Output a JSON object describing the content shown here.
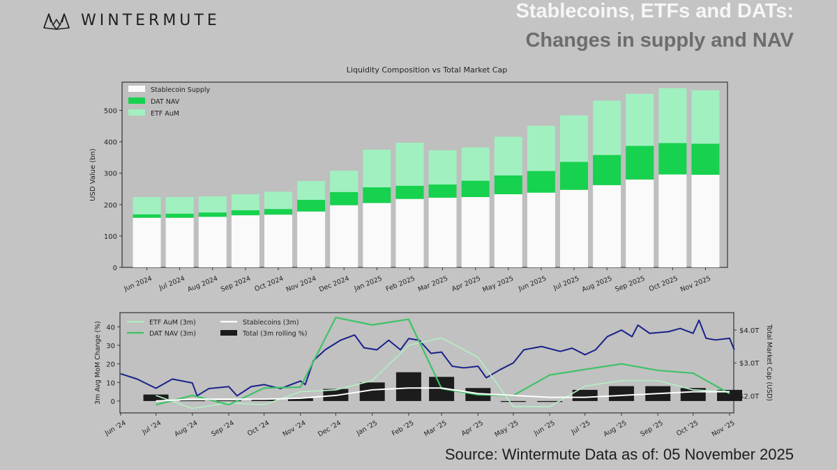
{
  "header": {
    "brand": "WINTERMUTE",
    "title_line1": "Stablecoins, ETFs and DATs:",
    "title_line2": "Changes in supply and NAV"
  },
  "footer": {
    "source": "Source: Wintermute  Data as of: 05 November 2025"
  },
  "colors": {
    "stablecoin": "#fafafa",
    "dat": "#16d24e",
    "etf": "#a1f0c0",
    "market_cap": "#1a1f8a",
    "dat_line": "#3ec266",
    "etf_line": "#b4ecc4",
    "stable_line": "#ffffff",
    "total_bar": "#1b1c1b",
    "background": "#c3c4c3"
  },
  "chart_data": [
    {
      "type": "bar",
      "stacked": true,
      "title": "Liquidity Composition vs Total Market Cap",
      "xlabel": "",
      "ylabel": "USD Value (bn)",
      "ylim": [
        0,
        590
      ],
      "yticks": [
        0,
        100,
        200,
        300,
        400,
        500
      ],
      "legend_placement": "top-left",
      "categories": [
        "Jun 2024",
        "Jul 2024",
        "Aug 2024",
        "Sep 2024",
        "Oct 2024",
        "Nov 2024",
        "Dec 2024",
        "Jan 2025",
        "Feb 2025",
        "Mar 2025",
        "Apr 2025",
        "May 2025",
        "Jun 2025",
        "Jul 2025",
        "Aug 2025",
        "Sep 2025",
        "Oct 2025",
        "Nov 2025"
      ],
      "series": [
        {
          "name": "Stablecoin Supply",
          "values": [
            158,
            158,
            161,
            166,
            168,
            178,
            198,
            205,
            218,
            222,
            224,
            233,
            238,
            247,
            262,
            280,
            296,
            295
          ]
        },
        {
          "name": "DAT NAV",
          "values": [
            11,
            13,
            14,
            16,
            18,
            37,
            42,
            50,
            42,
            42,
            52,
            60,
            69,
            89,
            96,
            107,
            100,
            99
          ]
        },
        {
          "name": "ETF AuM",
          "values": [
            55,
            53,
            51,
            51,
            55,
            60,
            68,
            120,
            137,
            109,
            106,
            123,
            144,
            148,
            173,
            166,
            175,
            170
          ]
        }
      ]
    },
    {
      "type": "line",
      "xlabel": "",
      "ylabel": "3m Avg MoM Change (%)",
      "ylabel_right": "Total Market Cap (USD)",
      "ylim": [
        -6.4,
        47.6
      ],
      "ylim_right": [
        1.48,
        4.53
      ],
      "yticks": [
        0,
        10,
        20,
        30,
        40
      ],
      "yticks_right": [
        "$2.0T",
        "$3.0T",
        "$4.0T"
      ],
      "yticks_right_values": [
        2.0,
        3.0,
        4.0
      ],
      "xticks": [
        "Jun '24",
        "Jul '24",
        "Aug '24",
        "Sep '24",
        "Oct '24",
        "Nov '24",
        "Dec '24",
        "Jan '25",
        "Feb '25",
        "Mar '25",
        "Apr '25",
        "May '25",
        "Jun '25",
        "Jul '25",
        "Aug '25",
        "Sep '25",
        "Oct '25",
        "Nov '25"
      ],
      "legend_placement": "top-left",
      "months": [
        "2024-07-01",
        "2024-08-01",
        "2024-09-01",
        "2024-10-01",
        "2024-11-01",
        "2024-12-01",
        "2025-01-01",
        "2025-02-01",
        "2025-03-01",
        "2025-04-01",
        "2025-05-01",
        "2025-06-01",
        "2025-07-01",
        "2025-08-01",
        "2025-09-01",
        "2025-10-01",
        "2025-11-01"
      ],
      "series": [
        {
          "name": "ETF AuM (3m)",
          "axis": "left",
          "values": [
            3,
            -4,
            -1,
            -2,
            5,
            6,
            11,
            30,
            34,
            23.5,
            -3,
            -3,
            8,
            11,
            11,
            6,
            5
          ]
        },
        {
          "name": "DAT NAV (3m)",
          "axis": "left",
          "values": [
            -2,
            3,
            -2,
            7,
            7.5,
            45,
            41,
            44,
            6.7,
            3.4,
            3,
            14,
            17,
            20,
            16.5,
            15,
            4
          ]
        },
        {
          "name": "Stablecoins (3m)",
          "axis": "left",
          "values": [
            0,
            1,
            1,
            1,
            1.5,
            3,
            6,
            7,
            7,
            4,
            3,
            2,
            2,
            3,
            4,
            5,
            5
          ]
        },
        {
          "name": "Total (3m rolling %)",
          "axis": "left",
          "type": "bar",
          "values": [
            3.5,
            0.3,
            0.3,
            1,
            1.5,
            6.5,
            10,
            15.5,
            13,
            7,
            -0.5,
            -0.5,
            6,
            8,
            8,
            7,
            6
          ]
        }
      ],
      "market_cap": {
        "axis": "right",
        "unit": "T USD",
        "x": [
          "2024-06-01",
          "2024-06-15",
          "2024-07-01",
          "2024-07-15",
          "2024-08-01",
          "2024-08-05",
          "2024-08-15",
          "2024-09-01",
          "2024-09-08",
          "2024-09-20",
          "2024-10-01",
          "2024-10-15",
          "2024-11-01",
          "2024-11-05",
          "2024-11-12",
          "2024-11-22",
          "2024-12-05",
          "2024-12-17",
          "2024-12-25",
          "2025-01-05",
          "2025-01-15",
          "2025-01-25",
          "2025-02-01",
          "2025-02-10",
          "2025-02-20",
          "2025-03-01",
          "2025-03-10",
          "2025-03-20",
          "2025-04-01",
          "2025-04-08",
          "2025-04-20",
          "2025-05-01",
          "2025-05-10",
          "2025-05-25",
          "2025-06-10",
          "2025-06-20",
          "2025-07-01",
          "2025-07-10",
          "2025-07-20",
          "2025-08-01",
          "2025-08-10",
          "2025-08-15",
          "2025-08-25",
          "2025-09-10",
          "2025-09-20",
          "2025-10-01",
          "2025-10-06",
          "2025-10-12",
          "2025-10-20",
          "2025-11-01",
          "2025-11-05"
        ],
        "values": [
          2.67,
          2.51,
          2.23,
          2.51,
          2.39,
          2.0,
          2.22,
          2.28,
          2.0,
          2.28,
          2.34,
          2.22,
          2.45,
          2.34,
          3.07,
          3.4,
          3.69,
          3.85,
          3.46,
          3.4,
          3.69,
          3.4,
          3.74,
          3.69,
          3.29,
          3.33,
          2.9,
          2.85,
          2.9,
          2.55,
          2.8,
          3.0,
          3.4,
          3.5,
          3.35,
          3.45,
          3.25,
          3.4,
          3.8,
          4.0,
          3.8,
          4.15,
          3.9,
          3.95,
          4.05,
          3.9,
          4.3,
          3.75,
          3.7,
          3.75,
          3.4
        ]
      }
    }
  ]
}
